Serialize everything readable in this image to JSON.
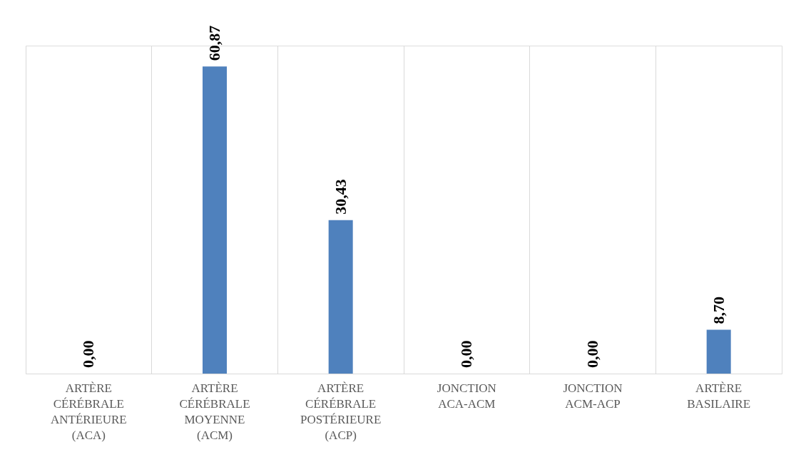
{
  "chart_data": {
    "type": "bar",
    "categories": [
      "ARTÈRE CÉRÉBRALE ANTÉRIEURE (ACA)",
      "ARTÈRE CÉRÉBRALE MOYENNE (ACM)",
      "ARTÈRE CÉRÉBRALE POSTÉRIEURE (ACP)",
      "JONCTION ACA-ACM",
      "JONCTION ACM-ACP",
      "ARTÈRE BASILAIRE"
    ],
    "values": [
      0,
      60.87,
      30.43,
      0,
      0,
      8.7
    ],
    "value_labels": [
      "0,00",
      "60,87",
      "30,43",
      "0,00",
      "0,00",
      "8,70"
    ],
    "color": "#4f81bd",
    "grid": "x"
  }
}
